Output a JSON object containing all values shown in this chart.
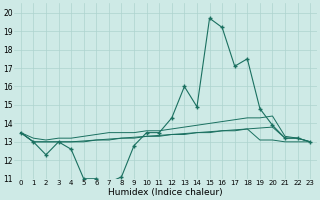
{
  "xlabel": "Humidex (Indice chaleur)",
  "background_color": "#ceeae6",
  "grid_color": "#aed4ce",
  "line_color": "#1a7060",
  "xlim": [
    -0.5,
    23.5
  ],
  "ylim": [
    11,
    20.5
  ],
  "yticks": [
    11,
    12,
    13,
    14,
    15,
    16,
    17,
    18,
    19,
    20
  ],
  "xticks": [
    0,
    1,
    2,
    3,
    4,
    5,
    6,
    7,
    8,
    9,
    10,
    11,
    12,
    13,
    14,
    15,
    16,
    17,
    18,
    19,
    20,
    21,
    22,
    23
  ],
  "main_line": [
    13.5,
    13.0,
    12.3,
    13.0,
    12.6,
    11.0,
    11.0,
    10.8,
    11.1,
    12.8,
    13.5,
    13.5,
    14.3,
    16.0,
    14.9,
    19.7,
    19.2,
    17.1,
    17.5,
    14.8,
    13.9,
    13.2,
    13.2,
    13.0
  ],
  "line2": [
    13.5,
    13.0,
    13.0,
    13.0,
    13.0,
    13.0,
    13.1,
    13.1,
    13.2,
    13.2,
    13.3,
    13.3,
    13.4,
    13.4,
    13.5,
    13.5,
    13.6,
    13.6,
    13.7,
    13.1,
    13.1,
    13.0,
    13.0,
    13.0
  ],
  "line3": [
    13.5,
    13.2,
    13.1,
    13.2,
    13.2,
    13.3,
    13.4,
    13.5,
    13.5,
    13.5,
    13.6,
    13.6,
    13.7,
    13.8,
    13.9,
    14.0,
    14.1,
    14.2,
    14.3,
    14.3,
    14.4,
    13.3,
    13.2,
    13.0
  ],
  "line4": [
    13.5,
    13.0,
    13.0,
    13.0,
    13.0,
    13.05,
    13.1,
    13.15,
    13.2,
    13.25,
    13.3,
    13.35,
    13.4,
    13.45,
    13.5,
    13.55,
    13.6,
    13.65,
    13.7,
    13.75,
    13.8,
    13.2,
    13.2,
    13.0
  ]
}
